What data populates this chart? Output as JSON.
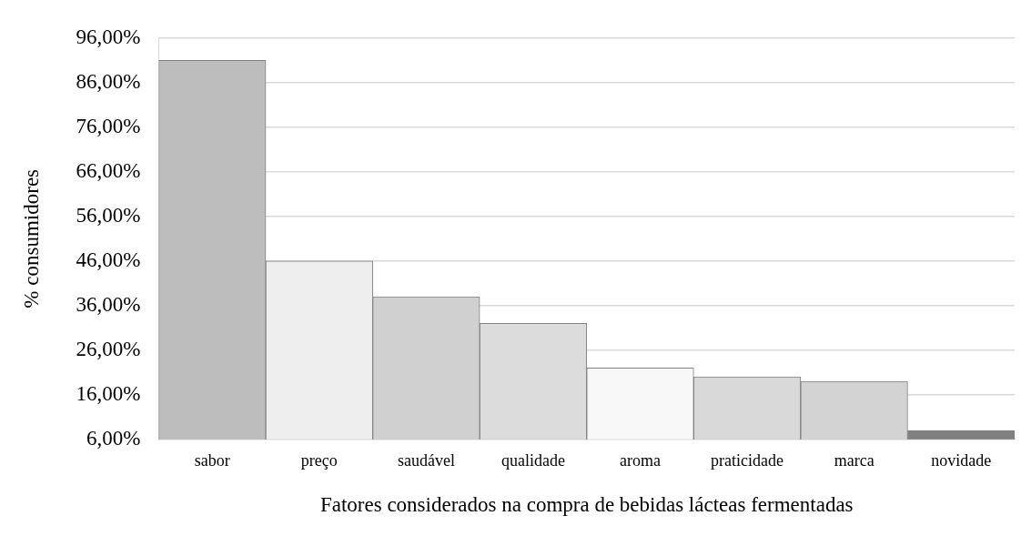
{
  "chart_data": {
    "type": "bar",
    "xlabel": "Fatores considerados na compra de bebidas lácteas fermentadas",
    "ylabel": "% consumidores",
    "categories": [
      "sabor",
      "preço",
      "saudável",
      "qualidade",
      "aroma",
      "praticidade",
      "marca",
      "novidade"
    ],
    "values": [
      91,
      46,
      38,
      32,
      22,
      20,
      19,
      8
    ],
    "colors": [
      "#bdbdbd",
      "#eeeeee",
      "#d0d0d0",
      "#dcdcdc",
      "#f8f8f8",
      "#d9d9d9",
      "#d3d3d3",
      "#808080"
    ],
    "ylim": [
      6,
      96
    ],
    "yticks": [
      {
        "value": 6,
        "label": "6,00%"
      },
      {
        "value": 16,
        "label": "16,00%"
      },
      {
        "value": 26,
        "label": "26,00%"
      },
      {
        "value": 36,
        "label": "36,00%"
      },
      {
        "value": 46,
        "label": "46,00%"
      },
      {
        "value": 56,
        "label": "56,00%"
      },
      {
        "value": 66,
        "label": "66,00%"
      },
      {
        "value": 76,
        "label": "76,00%"
      },
      {
        "value": 86,
        "label": "86,00%"
      },
      {
        "value": 96,
        "label": "96,00%"
      }
    ],
    "grid": "y",
    "legend": false
  }
}
